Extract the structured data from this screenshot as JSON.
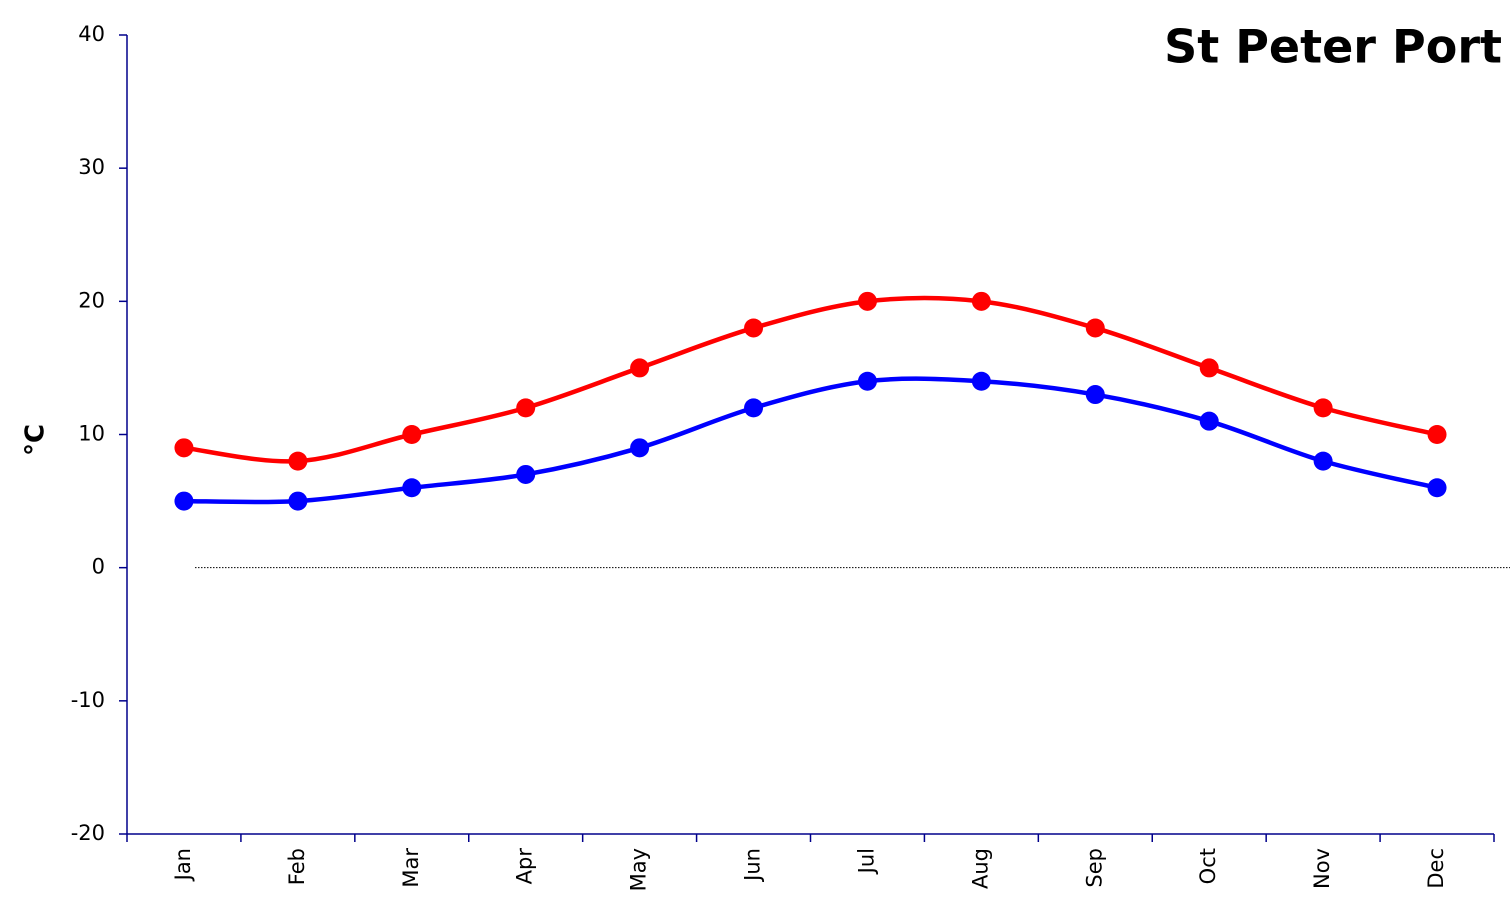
{
  "chart_data": {
    "type": "line",
    "title": "St Peter Port",
    "y_label": "°C",
    "categories": [
      "Jan",
      "Feb",
      "Mar",
      "Apr",
      "May",
      "Jun",
      "Jul",
      "Aug",
      "Sep",
      "Oct",
      "Nov",
      "Dec"
    ],
    "series": [
      {
        "color": "#ff0000",
        "values": [
          9,
          8,
          10,
          12,
          15,
          18,
          20,
          20,
          18,
          15,
          12,
          10
        ]
      },
      {
        "color": "#0000ff",
        "values": [
          5,
          5,
          6,
          7,
          9,
          12,
          14,
          14,
          13,
          11,
          8,
          6
        ]
      }
    ],
    "ylim": [
      -20,
      40
    ],
    "yticks": [
      -20,
      -10,
      0,
      10,
      20,
      30,
      40
    ],
    "smooth": true,
    "markers": true,
    "zero_line": true,
    "axis_color": "#00008b"
  }
}
